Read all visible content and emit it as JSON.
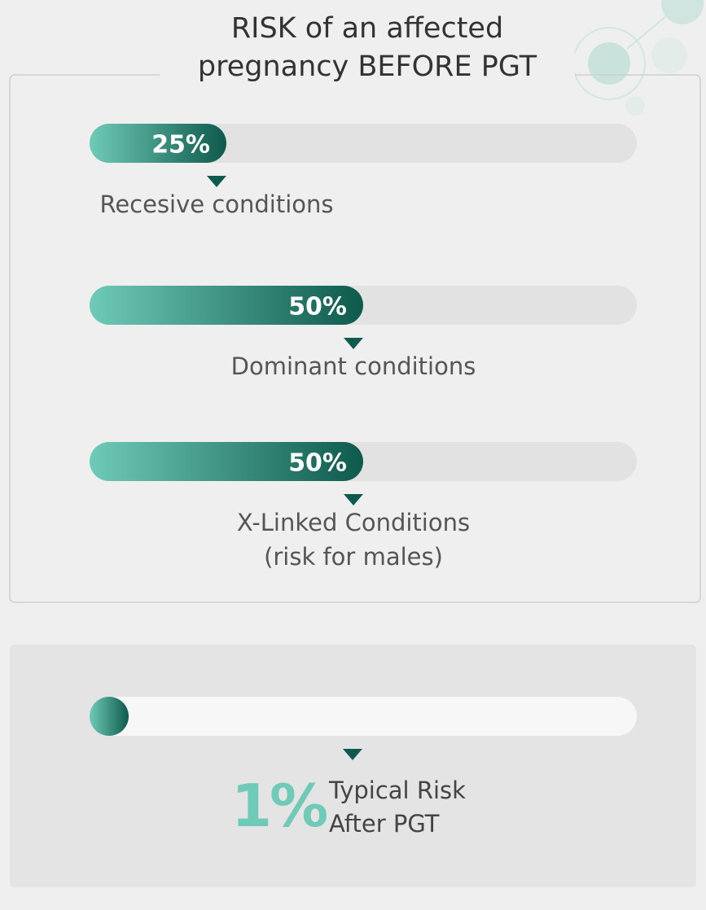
{
  "chart_data": [
    {
      "type": "bar",
      "title": "RISK of an affected pregnancy BEFORE PGT",
      "categories": [
        "Recesive conditions",
        "Dominant conditions",
        "X-Linked Conditions\n(risk for males)"
      ],
      "values": [
        25,
        50,
        50
      ],
      "value_labels": [
        "25%",
        "50%",
        "50%"
      ],
      "xlim": [
        0,
        100
      ],
      "color": [
        "#6fcab8",
        "#0e5a4c"
      ]
    },
    {
      "type": "bar",
      "categories": [
        "Typical Risk\nAfter PGT"
      ],
      "values": [
        1
      ],
      "value_labels": [
        "1%"
      ],
      "xlim": [
        0,
        100
      ],
      "color": [
        "#6fcab8",
        "#0e5a4c"
      ]
    }
  ]
}
